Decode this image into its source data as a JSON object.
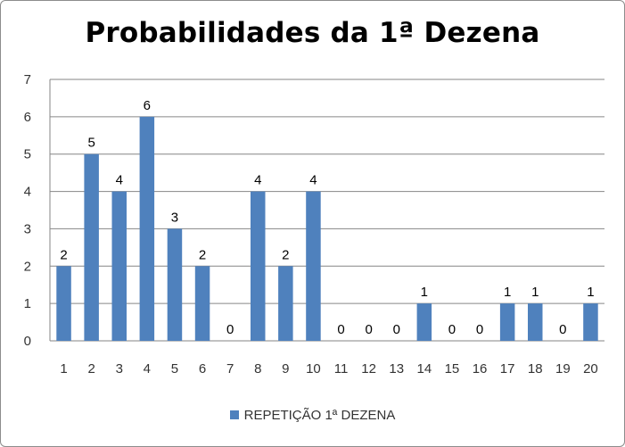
{
  "chart_data": {
    "type": "bar",
    "title": "Probabilidades da 1ª Dezena",
    "xlabel": "",
    "ylabel": "",
    "categories": [
      "1",
      "2",
      "3",
      "4",
      "5",
      "6",
      "7",
      "8",
      "9",
      "10",
      "11",
      "12",
      "13",
      "14",
      "15",
      "16",
      "17",
      "18",
      "19",
      "20"
    ],
    "series": [
      {
        "name": "REPETIÇÃO 1ª DEZENA",
        "values": [
          2,
          5,
          4,
          6,
          3,
          2,
          0,
          4,
          2,
          4,
          0,
          0,
          0,
          1,
          0,
          0,
          1,
          1,
          0,
          1
        ],
        "color": "#4F81BD"
      }
    ],
    "ylim": [
      0,
      7
    ],
    "yticks": [
      "0",
      "1",
      "2",
      "3",
      "4",
      "5",
      "6",
      "7"
    ],
    "grid": true,
    "legend_position": "bottom",
    "data_labels": true
  }
}
